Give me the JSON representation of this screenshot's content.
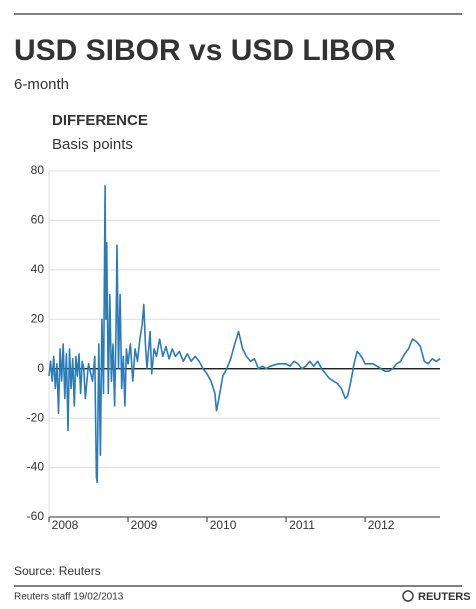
{
  "chart_data": {
    "type": "line",
    "title": "USD SIBOR vs USD LIBOR",
    "subtitle": "6-month",
    "panel_title": "DIFFERENCE",
    "y_label": "Basis points",
    "color": "#2b7bb9",
    "grid": true,
    "xlim": [
      2008,
      2013.1
    ],
    "xticks": [
      2008,
      2009,
      2010,
      2011,
      2012
    ],
    "ylim": [
      -60,
      80
    ],
    "yticks": [
      -60,
      -40,
      -20,
      0,
      20,
      40,
      60,
      80
    ],
    "x": [
      2008.0,
      2008.02,
      2008.04,
      2008.06,
      2008.08,
      2008.1,
      2008.12,
      2008.14,
      2008.16,
      2008.18,
      2008.2,
      2008.22,
      2008.24,
      2008.26,
      2008.28,
      2008.3,
      2008.32,
      2008.34,
      2008.36,
      2008.38,
      2008.4,
      2008.42,
      2008.44,
      2008.46,
      2008.5,
      2008.55,
      2008.58,
      2008.6,
      2008.61,
      2008.63,
      2008.65,
      2008.67,
      2008.69,
      2008.71,
      2008.72,
      2008.73,
      2008.75,
      2008.77,
      2008.79,
      2008.81,
      2008.83,
      2008.85,
      2008.86,
      2008.88,
      2008.9,
      2008.92,
      2008.94,
      2008.96,
      2008.98,
      2009.0,
      2009.03,
      2009.06,
      2009.09,
      2009.12,
      2009.15,
      2009.18,
      2009.2,
      2009.22,
      2009.24,
      2009.28,
      2009.3,
      2009.33,
      2009.36,
      2009.4,
      2009.44,
      2009.48,
      2009.52,
      2009.56,
      2009.6,
      2009.65,
      2009.7,
      2009.75,
      2009.8,
      2009.85,
      2009.9,
      2009.95,
      2010.0,
      2010.05,
      2010.1,
      2010.12,
      2010.15,
      2010.2,
      2010.25,
      2010.3,
      2010.35,
      2010.4,
      2010.45,
      2010.5,
      2010.55,
      2010.6,
      2010.65,
      2010.7,
      2010.75,
      2010.8,
      2010.9,
      2011.0,
      2011.05,
      2011.1,
      2011.15,
      2011.2,
      2011.25,
      2011.3,
      2011.35,
      2011.4,
      2011.45,
      2011.5,
      2011.55,
      2011.6,
      2011.65,
      2011.7,
      2011.75,
      2011.78,
      2011.82,
      2011.86,
      2011.9,
      2011.93,
      2011.97,
      2012.0,
      2012.1,
      2012.15,
      2012.2,
      2012.25,
      2012.3,
      2012.35,
      2012.4,
      2012.45,
      2012.5,
      2012.55,
      2012.6,
      2012.65,
      2012.7,
      2012.75,
      2012.8,
      2012.85,
      2012.9,
      2012.95
    ],
    "values": [
      -3,
      3,
      -5,
      5,
      -8,
      2,
      -18,
      8,
      -5,
      10,
      -12,
      6,
      -25,
      8,
      -8,
      4,
      -15,
      5,
      -3,
      6,
      -10,
      3,
      0,
      -12,
      2,
      -5,
      5,
      -44,
      -46,
      10,
      -35,
      20,
      -10,
      74,
      20,
      51,
      -10,
      30,
      -5,
      10,
      -15,
      20,
      50,
      0,
      30,
      -8,
      5,
      -15,
      8,
      2,
      10,
      -5,
      8,
      3,
      12,
      18,
      26,
      10,
      0,
      15,
      -2,
      8,
      5,
      12,
      5,
      9,
      4,
      8,
      5,
      7,
      3,
      6,
      3,
      5,
      3,
      0,
      -2,
      -5,
      -10,
      -17,
      -12,
      -3,
      0,
      4,
      10,
      15,
      8,
      5,
      3,
      4,
      0,
      1,
      0,
      1,
      2,
      2,
      1,
      3,
      2,
      0,
      1,
      3,
      1,
      3,
      0,
      -2,
      -4,
      -5,
      -6,
      -8,
      -12,
      -11,
      -5,
      2,
      7,
      6,
      4,
      2,
      2,
      1,
      0,
      -1,
      -1,
      0,
      2,
      3,
      6,
      8,
      12,
      11,
      9,
      3,
      2,
      4,
      3,
      4
    ]
  },
  "source": "Source: Reuters",
  "credit": "Reuters staff  19/02/2013",
  "brand": "REUTERS"
}
